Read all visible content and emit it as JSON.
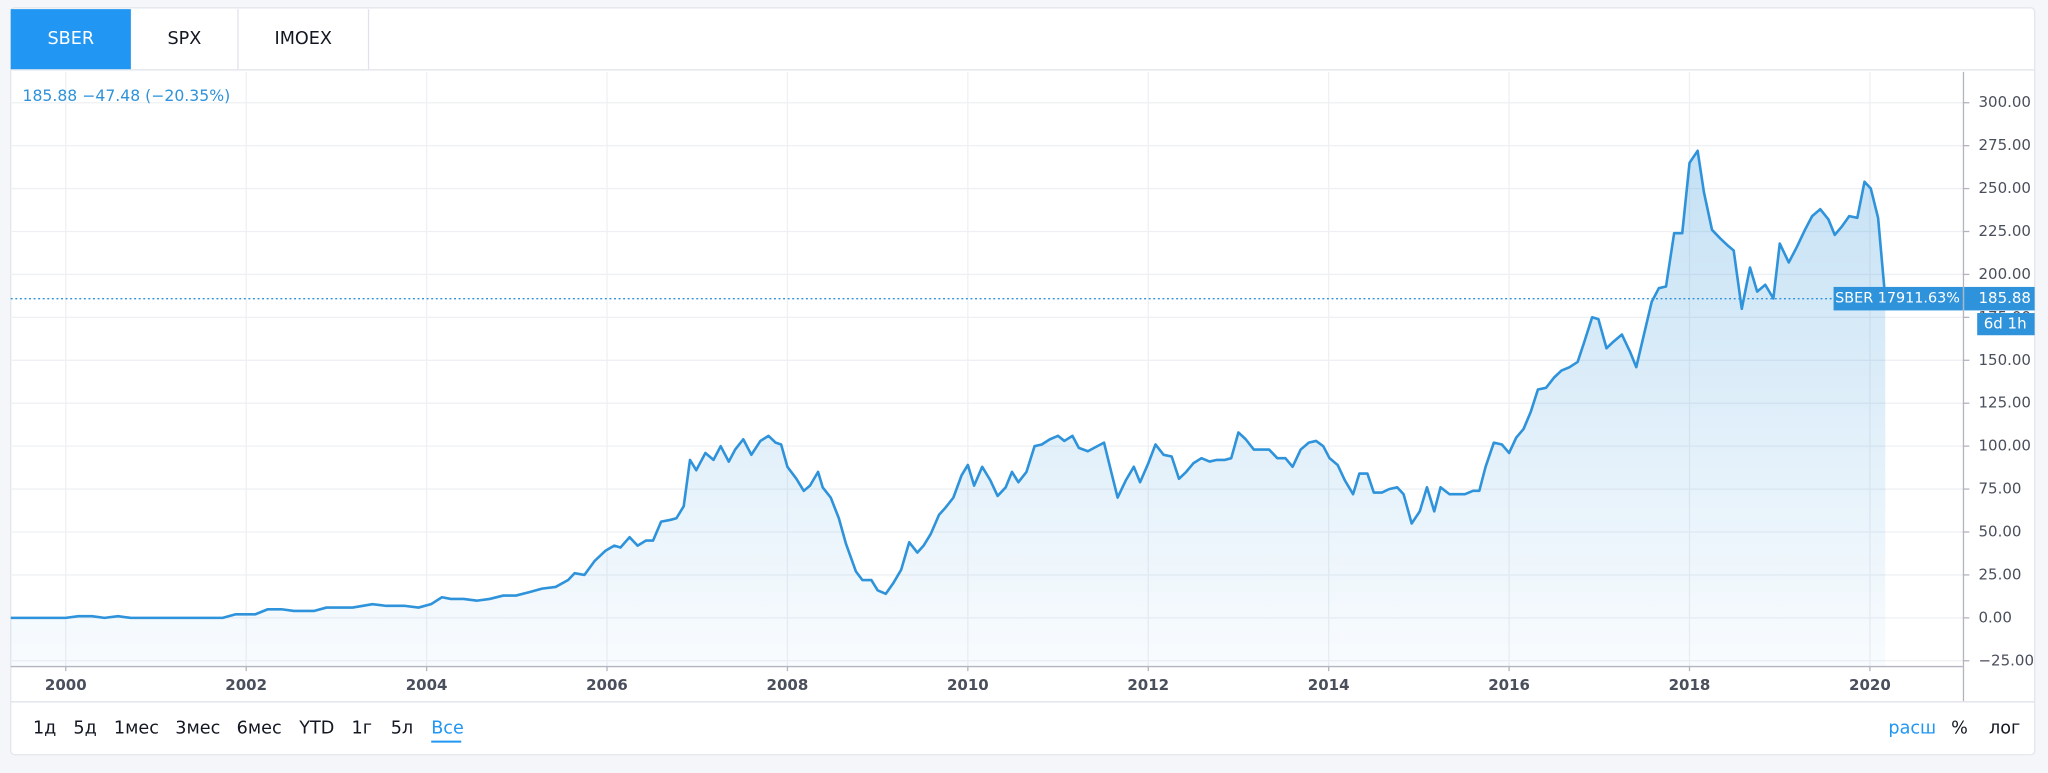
{
  "tabs": [
    "SBER",
    "SPX",
    "IMOEX"
  ],
  "legend": "185.88 −47.48 (−20.35%)",
  "price_tag": "SBER 17911.63%",
  "countdown": "6d 1h",
  "range_buttons": [
    "1д",
    "5д",
    "1мес",
    "3мес",
    "6мес",
    "YTD",
    "1г",
    "5л",
    "Все"
  ],
  "right_buttons": [
    "расш",
    "%",
    "лог"
  ],
  "chart_data": {
    "type": "line",
    "grid": true,
    "xlim": [
      1999.39,
      2021.03
    ],
    "ylim": [
      -28,
      318
    ],
    "xticks": [
      2000,
      2002,
      2004,
      2006,
      2008,
      2010,
      2012,
      2014,
      2016,
      2018,
      2020
    ],
    "yticks": [
      {
        "value": -25,
        "label": "−25.00"
      },
      {
        "value": 0,
        "label": "0.00"
      },
      {
        "value": 25,
        "label": "25.00"
      },
      {
        "value": 50,
        "label": "50.00"
      },
      {
        "value": 75,
        "label": "75.00"
      },
      {
        "value": 100,
        "label": "100.00"
      },
      {
        "value": 125,
        "label": "125.00"
      },
      {
        "value": 150,
        "label": "150.00"
      },
      {
        "value": 175,
        "label": "175.00"
      },
      {
        "value": 200,
        "label": "200.00"
      },
      {
        "value": 225,
        "label": "225.00"
      },
      {
        "value": 250,
        "label": "250.00"
      },
      {
        "value": 275,
        "label": "275.00"
      },
      {
        "value": 300,
        "label": "300.00"
      }
    ],
    "x": [
      1999.39,
      2000.0,
      2000.14,
      2000.29,
      2000.43,
      2000.58,
      2000.72,
      2001.74,
      2001.88,
      2002.1,
      2002.24,
      2002.39,
      2002.53,
      2002.75,
      2002.89,
      2003.18,
      2003.4,
      2003.55,
      2003.76,
      2003.91,
      2004.05,
      2004.17,
      2004.27,
      2004.41,
      2004.56,
      2004.7,
      2004.85,
      2004.99,
      2005.14,
      2005.28,
      2005.43,
      2005.57,
      2005.64,
      2005.75,
      2005.86,
      2005.98,
      2006.08,
      2006.15,
      2006.25,
      2006.34,
      2006.43,
      2006.51,
      2006.6,
      2006.7,
      2006.77,
      2006.85,
      2006.92,
      2006.99,
      2007.09,
      2007.18,
      2007.26,
      2007.35,
      2007.42,
      2007.51,
      2007.6,
      2007.7,
      2007.79,
      2007.87,
      2007.93,
      2008.0,
      2008.1,
      2008.18,
      2008.25,
      2008.34,
      2008.39,
      2008.48,
      2008.57,
      2008.65,
      2008.76,
      2008.83,
      2008.93,
      2009.0,
      2009.09,
      2009.17,
      2009.26,
      2009.35,
      2009.44,
      2009.51,
      2009.59,
      2009.68,
      2009.75,
      2009.84,
      2009.93,
      2010.0,
      2010.07,
      2010.16,
      2010.25,
      2010.33,
      2010.42,
      2010.49,
      2010.56,
      2010.65,
      2010.74,
      2010.82,
      2010.91,
      2011.0,
      2011.07,
      2011.16,
      2011.23,
      2011.33,
      2011.4,
      2011.51,
      2011.59,
      2011.66,
      2011.75,
      2011.84,
      2011.91,
      2012.0,
      2012.08,
      2012.17,
      2012.26,
      2012.34,
      2012.42,
      2012.5,
      2012.59,
      2012.68,
      2012.76,
      2012.85,
      2012.92,
      2013.0,
      2013.08,
      2013.17,
      2013.27,
      2013.34,
      2013.43,
      2013.52,
      2013.6,
      2013.69,
      2013.78,
      2013.86,
      2013.94,
      2014.01,
      2014.1,
      2014.18,
      2014.27,
      2014.34,
      2014.43,
      2014.5,
      2014.59,
      2014.67,
      2014.76,
      2014.83,
      2014.92,
      2015.01,
      2015.09,
      2015.17,
      2015.24,
      2015.34,
      2015.43,
      2015.51,
      2015.6,
      2015.67,
      2015.74,
      2015.83,
      2015.92,
      2016.0,
      2016.08,
      2016.16,
      2016.24,
      2016.32,
      2016.41,
      2016.5,
      2016.58,
      2016.67,
      2016.76,
      2016.83,
      2016.92,
      2016.99,
      2017.08,
      2017.16,
      2017.25,
      2017.34,
      2017.41,
      2017.5,
      2017.58,
      2017.66,
      2017.74,
      2017.83,
      2017.92,
      2018.0,
      2018.09,
      2018.16,
      2018.25,
      2018.34,
      2018.42,
      2018.49,
      2018.58,
      2018.67,
      2018.75,
      2018.84,
      2018.93,
      2019.0,
      2019.1,
      2019.19,
      2019.28,
      2019.36,
      2019.45,
      2019.54,
      2019.61,
      2019.69,
      2019.77,
      2019.86,
      2019.94,
      2020.01,
      2020.09,
      2020.17
    ],
    "series": [
      {
        "name": "SBER",
        "color": "#2e93da",
        "values": [
          0,
          0,
          1,
          1,
          0,
          1,
          0,
          0,
          2,
          2,
          5,
          5,
          4,
          4,
          6,
          6,
          8,
          7,
          7,
          6,
          8,
          12,
          11,
          11,
          10,
          11,
          13,
          13,
          15,
          17,
          18,
          22,
          26,
          25,
          33,
          39,
          42,
          41,
          47,
          42,
          45,
          45,
          56,
          57,
          58,
          65,
          92,
          86,
          96,
          92,
          100,
          91,
          98,
          104,
          95,
          103,
          106,
          102,
          101,
          88,
          81,
          74,
          77,
          85,
          76,
          70,
          58,
          43,
          27,
          22,
          22,
          16,
          14,
          20,
          28,
          44,
          38,
          42,
          49,
          60,
          64,
          70,
          83,
          89,
          77,
          88,
          80,
          71,
          76,
          85,
          79,
          85,
          100,
          101,
          104,
          106,
          103,
          106,
          99,
          97,
          99,
          102,
          85,
          70,
          80,
          88,
          79,
          90,
          101,
          95,
          94,
          81,
          85,
          90,
          93,
          91,
          92,
          92,
          93,
          108,
          104,
          98,
          98,
          98,
          93,
          93,
          88,
          98,
          102,
          103,
          100,
          93,
          89,
          80,
          72,
          84,
          84,
          73,
          73,
          75,
          76,
          72,
          55,
          62,
          76,
          62,
          76,
          72,
          72,
          72,
          74,
          74,
          88,
          102,
          101,
          96,
          105,
          110,
          120,
          133,
          134,
          140,
          144,
          146,
          149,
          160,
          175,
          174,
          157,
          161,
          165,
          155,
          146,
          166,
          184,
          192,
          193,
          224,
          224,
          265,
          272,
          248,
          226,
          221,
          217,
          214,
          180,
          204,
          190,
          194,
          186,
          218,
          207,
          216,
          226,
          234,
          238,
          232,
          223,
          228,
          234,
          233,
          254,
          250,
          233,
          185.88
        ]
      }
    ]
  }
}
